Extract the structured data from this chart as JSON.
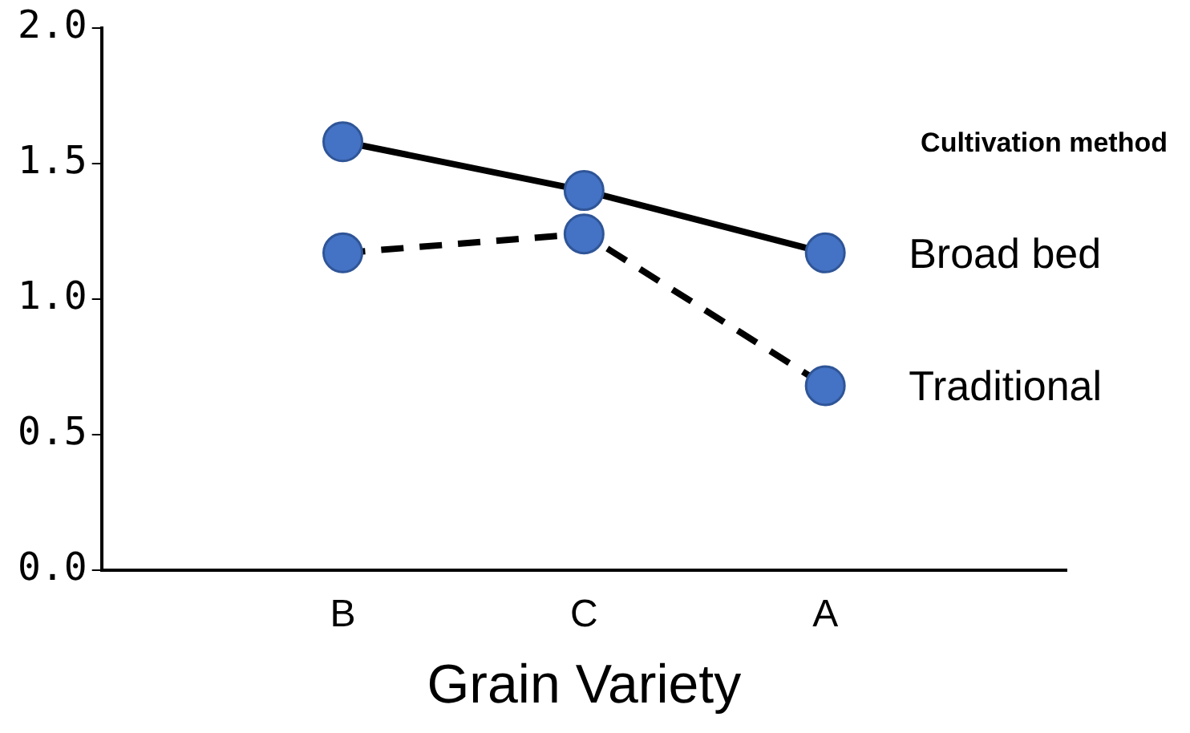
{
  "chart_data": {
    "type": "line",
    "xlabel": "Grain Variety",
    "legend_title": "Cultivation method",
    "categories": [
      "B",
      "C",
      "A"
    ],
    "ylim": [
      0,
      2
    ],
    "yticks": [
      {
        "value": 0,
        "label": "0.0"
      },
      {
        "value": 0.5,
        "label": "0.5"
      },
      {
        "value": 1,
        "label": "1.0"
      },
      {
        "value": 1.5,
        "label": "1.5"
      },
      {
        "value": 2,
        "label": "2.0"
      }
    ],
    "grid": false,
    "legend": "right",
    "marker": "circle",
    "series": [
      {
        "name": "Broad bed",
        "color": "#4472c4",
        "values": [
          1.58,
          1.4,
          1.17
        ],
        "line_style": "solid"
      },
      {
        "name": "Traditional",
        "color": "#4472c4",
        "values": [
          1.17,
          1.24,
          0.68
        ],
        "line_style": "dashed"
      }
    ]
  }
}
